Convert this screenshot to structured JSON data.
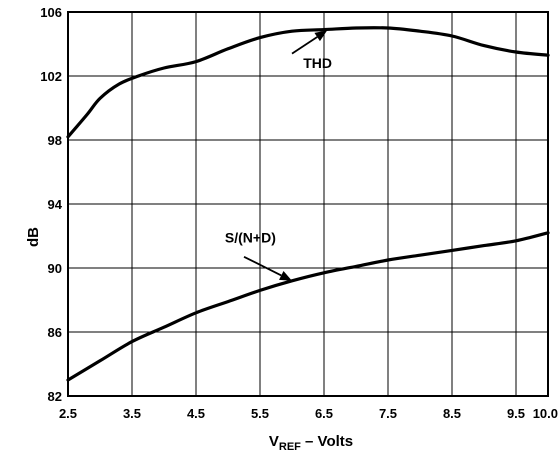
{
  "chart_data": {
    "type": "line",
    "title": "",
    "xlabel": "V",
    "xlabel_subscript": "REF",
    "xlabel_suffix": " – Volts",
    "ylabel": "dB",
    "xlim": [
      2.5,
      10.0
    ],
    "ylim": [
      82,
      106
    ],
    "x_ticks": [
      "2.5",
      "3.5",
      "4.5",
      "5.5",
      "6.5",
      "7.5",
      "8.5",
      "9.5",
      "10.0"
    ],
    "y_ticks": [
      "82",
      "86",
      "90",
      "94",
      "98",
      "102",
      "106"
    ],
    "grid": true,
    "legend": "none",
    "series": [
      {
        "name": "THD",
        "points": [
          [
            2.5,
            98.2
          ],
          [
            2.8,
            99.6
          ],
          [
            3.0,
            100.6
          ],
          [
            3.3,
            101.5
          ],
          [
            3.6,
            102.0
          ],
          [
            4.0,
            102.5
          ],
          [
            4.5,
            102.9
          ],
          [
            5.0,
            103.7
          ],
          [
            5.5,
            104.4
          ],
          [
            6.0,
            104.8
          ],
          [
            6.5,
            104.9
          ],
          [
            7.0,
            105.0
          ],
          [
            7.5,
            105.0
          ],
          [
            8.0,
            104.8
          ],
          [
            8.5,
            104.5
          ],
          [
            9.0,
            103.9
          ],
          [
            9.5,
            103.5
          ],
          [
            10.0,
            103.3
          ]
        ]
      },
      {
        "name": "S/(N+D)",
        "points": [
          [
            2.5,
            83.0
          ],
          [
            3.0,
            84.2
          ],
          [
            3.5,
            85.4
          ],
          [
            4.0,
            86.3
          ],
          [
            4.5,
            87.2
          ],
          [
            5.0,
            87.9
          ],
          [
            5.5,
            88.6
          ],
          [
            6.0,
            89.2
          ],
          [
            6.5,
            89.7
          ],
          [
            7.0,
            90.1
          ],
          [
            7.5,
            90.5
          ],
          [
            8.0,
            90.8
          ],
          [
            8.5,
            91.1
          ],
          [
            9.0,
            91.4
          ],
          [
            9.5,
            91.7
          ],
          [
            10.0,
            92.2
          ]
        ]
      }
    ],
    "annotations": [
      {
        "label": "THD",
        "text_at": [
          6.4,
          102.5
        ],
        "arrow_from": [
          6.0,
          103.4
        ],
        "arrow_to": [
          6.55,
          104.85
        ]
      },
      {
        "label": "S/(N+D)",
        "text_at": [
          5.35,
          91.6
        ],
        "arrow_from": [
          5.25,
          90.7
        ],
        "arrow_to": [
          6.0,
          89.2
        ]
      }
    ]
  }
}
